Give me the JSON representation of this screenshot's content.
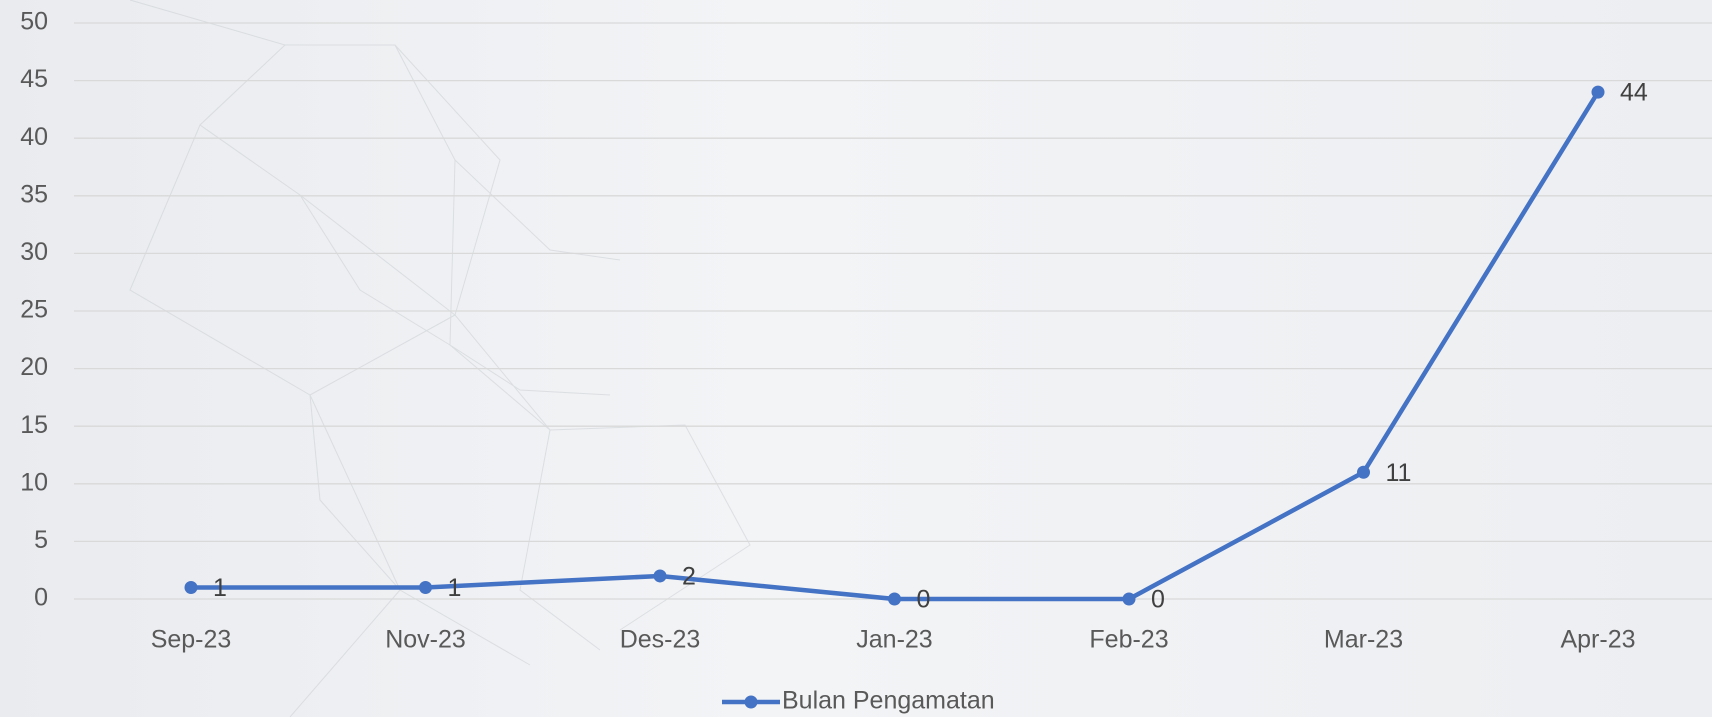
{
  "chart_data": {
    "type": "line",
    "categories": [
      "Sep-23",
      "Nov-23",
      "Des-23",
      "Jan-23",
      "Feb-23",
      "Mar-23",
      "Apr-23"
    ],
    "series": [
      {
        "name": "Bulan Pengamatan",
        "color": "#4472c4",
        "values": [
          1,
          1,
          2,
          0,
          0,
          11,
          44
        ]
      }
    ],
    "ylim": [
      0,
      50
    ],
    "yticks": [
      0,
      5,
      10,
      15,
      20,
      25,
      30,
      35,
      40,
      45,
      50
    ],
    "grid": true,
    "data_labels": true,
    "legend": "bottom"
  }
}
